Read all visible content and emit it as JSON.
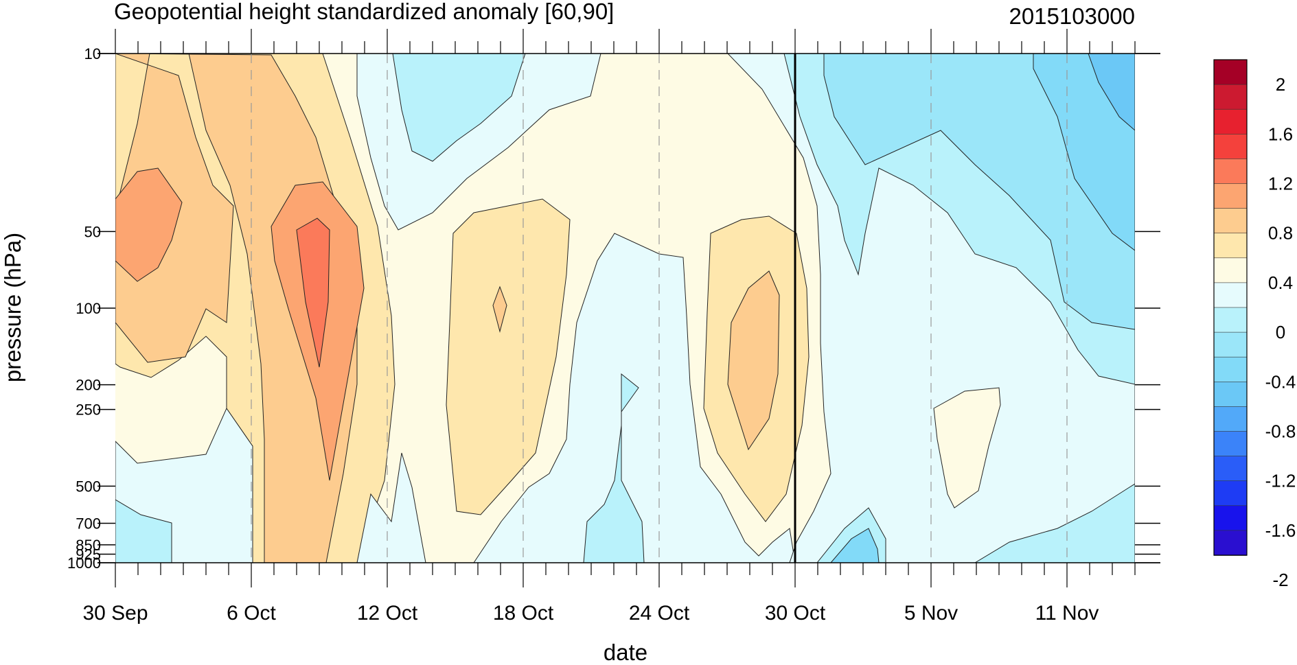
{
  "chart_data": {
    "type": "heatmap",
    "title": "Geopotential height standardized anomaly [60,90]",
    "run_label": "2015103000",
    "xlabel": "date",
    "ylabel": "pressure (hPa)",
    "x_ticks": [
      {
        "day": 0,
        "label": "30 Sep"
      },
      {
        "day": 6,
        "label": "6 Oct"
      },
      {
        "day": 12,
        "label": "12 Oct"
      },
      {
        "day": 18,
        "label": "18 Oct"
      },
      {
        "day": 24,
        "label": "24 Oct"
      },
      {
        "day": 30,
        "label": "30 Oct"
      },
      {
        "day": 36,
        "label": "5 Nov"
      },
      {
        "day": 42,
        "label": "11 Nov"
      }
    ],
    "x_range": [
      "30 Sep",
      "14 Nov"
    ],
    "y_ticks": [
      {
        "value": 10,
        "label": "10"
      },
      {
        "value": 50,
        "label": "50"
      },
      {
        "value": 100,
        "label": "100"
      },
      {
        "value": 200,
        "label": "200"
      },
      {
        "value": 250,
        "label": "250"
      },
      {
        "value": 500,
        "label": "500"
      },
      {
        "value": 700,
        "label": "700"
      },
      {
        "value": 850,
        "label": "850"
      },
      {
        "value": 925,
        "label": "925"
      },
      {
        "value": 1000,
        "label": "1000"
      }
    ],
    "ylim": [
      1000,
      10
    ],
    "y_scale": "log",
    "vertical_marker": "30 Oct",
    "colorbar": {
      "levels": [
        "2",
        "1.6",
        "1.2",
        "0.8",
        "0.4",
        "0",
        "-0.4",
        "-0.8",
        "-1.2",
        "-1.6",
        "-2"
      ],
      "colors": [
        "#a50026",
        "#cc1a30",
        "#e7212f",
        "#f4413c",
        "#fb7a5a",
        "#fca571",
        "#fdcc8f",
        "#fee7ad",
        "#fefbe4",
        "#e6fbfd",
        "#b9f2fb",
        "#9be6f9",
        "#82daf8",
        "#6bc8f6",
        "#52a9f9",
        "#3b83f9",
        "#2a5df8",
        "#1e3cf4",
        "#1813ec",
        "#2a0fd0"
      ]
    },
    "contour_fields": [
      {
        "value": 0.8,
        "color": "#fdcc8f",
        "region": "30 Sep – 11 Oct",
        "p_range": [
          30,
          150
        ]
      },
      {
        "value": 1.0,
        "color": "#fca571",
        "region": "8 Oct – 10 Oct",
        "p_range": [
          50,
          170
        ]
      },
      {
        "value": 0.4,
        "color": "#fee7ad",
        "region": "14 Oct – 20 Oct",
        "p_range": [
          50,
          650
        ]
      },
      {
        "value": 0.8,
        "color": "#fdcc8f",
        "region": "27 Oct – 29 Oct",
        "p_range": [
          75,
          350
        ]
      },
      {
        "value": -0.4,
        "color": "#b9f2fb",
        "region": "12 Oct – 17 Oct",
        "p_range": [
          10,
          33
        ]
      },
      {
        "value": -0.8,
        "color": "#82daf8",
        "region": "9 Nov – 14 Nov",
        "p_range": [
          10,
          50
        ]
      },
      {
        "value": 0.0,
        "color": "#fefbe4",
        "region": "6 Nov – 9 Nov",
        "p_range": [
          250,
          620
        ]
      }
    ]
  }
}
